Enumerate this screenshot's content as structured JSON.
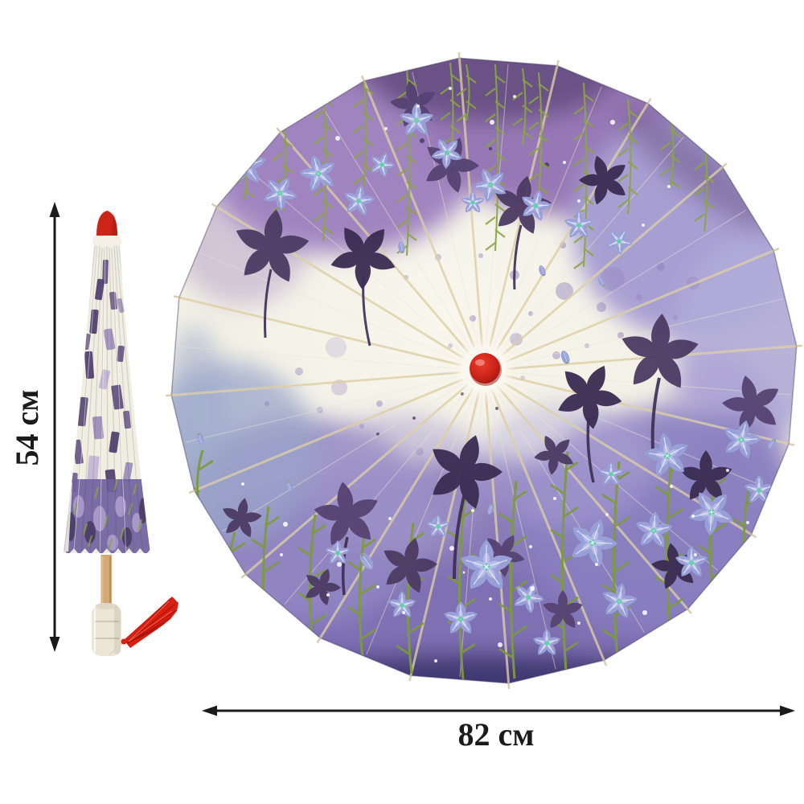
{
  "scene": {
    "background_color": "#ffffff",
    "description": "Product photo of a Chinese oil-paper parasol with purple bellflower print: closed side view (left) with height dimension arrow, open top view (right) with diameter dimension arrow"
  },
  "dimension_annotations": {
    "closed_height_label": "54 см",
    "open_diameter_label": "82 см",
    "line_color": "#1b1b1b"
  },
  "umbrella": {
    "rib_count": 20,
    "colors": {
      "canopy_base": "#f3f2e7",
      "canopy_base_edge": "#e9ebdd",
      "canopy_edge_dark": "#3f3870",
      "watercolor_top": "#9678b6",
      "watercolor_top_soft": "#a084c0",
      "watercolor_top_dark": "#6b5186",
      "watercolor_right": "#a79fd2",
      "watercolor_right_soft": "#b1abd8",
      "watercolor_bottom": "#8172b4",
      "watercolor_bottom_deep": "#5e529b",
      "watercolor_bottom_soft": "#9186c2",
      "watercolor_bottom_soft2": "#8a7fc0",
      "watercolor_blue": "#9aa6c9",
      "watercolor_lilac": "#a79cce",
      "watercolor_lilac2": "#b0a6d6",
      "splatter": "#8f7fba",
      "flower_dark": "#4c3a63",
      "flower_dark_deep": "#3a2c52",
      "flower_light": "#99a0d8",
      "flower_light_inner": "#c7cbee",
      "flower_center": "#eef2ff",
      "flower_center_dots": "#5ecfa8",
      "stem_green": "#7d9a3e",
      "vine_green": "#8aa544",
      "rib": "#e2d4ae",
      "rib_shadow": "#c9b88e",
      "hub_red": "#cc241a",
      "hub_red_dark": "#8e130b",
      "hub_ring": "#f9f7ef",
      "tip_red": "#ce2418",
      "collar_white": "#f4f0e6",
      "fold_cream": "#f0ede1",
      "fold_shadow": "#d8d2c2",
      "fold_purple": "#5c4a7c",
      "fold_deep": "#4a3a6a",
      "fold_purple_light": "#8e7cb4",
      "fold_lav": "#b3a4d2",
      "fold_bottom": "#70619e",
      "shaft_wood": "#d2a876",
      "handle_cream": "#ece6d6",
      "tassel_red": "#d71f13",
      "tassel_dark": "#9e0f06",
      "tassel_light": "#ff6a58"
    }
  }
}
